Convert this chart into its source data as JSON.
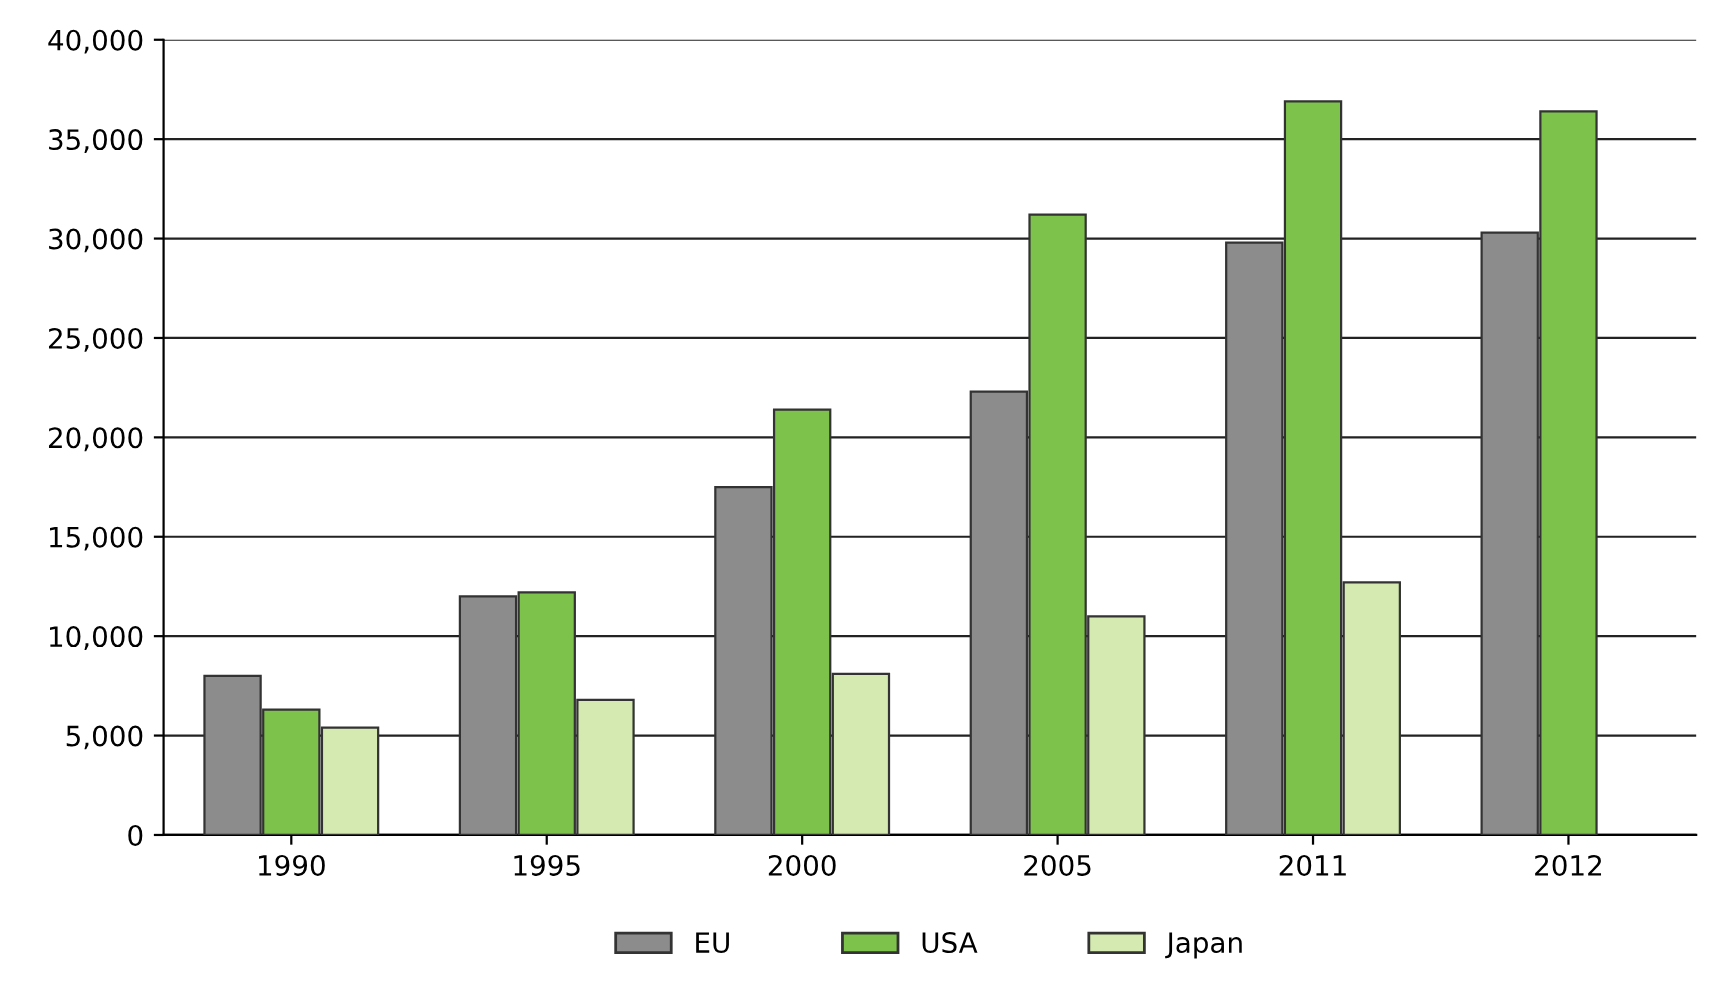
{
  "chart_data": {
    "type": "bar",
    "categories": [
      "1990",
      "1995",
      "2000",
      "2005",
      "2011",
      "2012"
    ],
    "series": [
      {
        "name": "EU",
        "color": "#8c8c8c",
        "values": [
          8000,
          12000,
          17500,
          22300,
          29800,
          30300
        ]
      },
      {
        "name": "USA",
        "color": "#7dc24a",
        "values": [
          6300,
          12200,
          21400,
          31200,
          36900,
          36400
        ]
      },
      {
        "name": "Japan",
        "color": "#d4eab0",
        "values": [
          5400,
          6800,
          8100,
          11000,
          12700,
          null
        ]
      }
    ],
    "ylim": [
      0,
      40000
    ],
    "yticks": [
      {
        "value": 0,
        "label": "0"
      },
      {
        "value": 5000,
        "label": "5,000"
      },
      {
        "value": 10000,
        "label": "10,000"
      },
      {
        "value": 15000,
        "label": "15,000"
      },
      {
        "value": 20000,
        "label": "20,000"
      },
      {
        "value": 25000,
        "label": "25,000"
      },
      {
        "value": 30000,
        "label": "30,000"
      },
      {
        "value": 35000,
        "label": "35,000"
      },
      {
        "value": 40000,
        "label": "40,000"
      }
    ],
    "grid": "y",
    "legend": "bottom"
  }
}
